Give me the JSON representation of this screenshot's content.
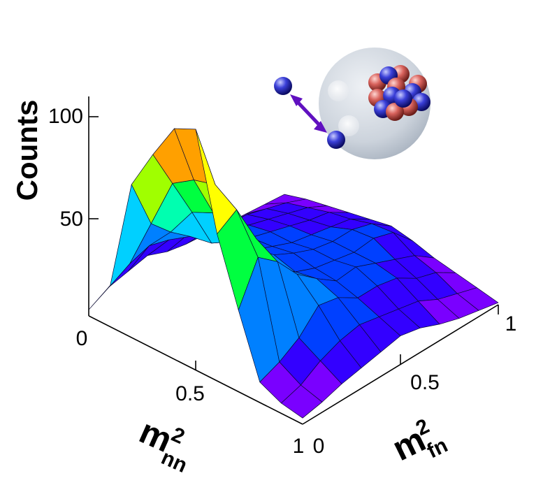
{
  "chart_data": {
    "type": "surface3d",
    "title": "",
    "zlabel": "Counts",
    "xlabel": {
      "base": "m",
      "sup": "2",
      "sub": "nn"
    },
    "ylabel": {
      "base": "m",
      "sup": "2",
      "sub": "fn"
    },
    "x_ticks": [
      "0",
      "0.5",
      "1"
    ],
    "y_ticks": [
      "0",
      "0.5",
      "1"
    ],
    "z_ticks": [
      "50",
      "100"
    ],
    "xlim": [
      0,
      1
    ],
    "ylim": [
      0,
      1
    ],
    "zlim": [
      0,
      110
    ],
    "grid": [
      0,
      0.1,
      0.2,
      0.3,
      0.4,
      0.5,
      0.6,
      0.7,
      0.8,
      0.9,
      1.0
    ],
    "z": [
      [
        3,
        20,
        75,
        95,
        113,
        118,
        72,
        40,
        10,
        5,
        3
      ],
      [
        8,
        25,
        50,
        75,
        82,
        85,
        78,
        60,
        14,
        8,
        5
      ],
      [
        10,
        28,
        40,
        55,
        60,
        62,
        58,
        52,
        20,
        14,
        8
      ],
      [
        12,
        25,
        32,
        34,
        40,
        42,
        38,
        40,
        30,
        18,
        10
      ],
      [
        8,
        22,
        28,
        30,
        30,
        33,
        30,
        32,
        28,
        20,
        12
      ],
      [
        6,
        18,
        24,
        25,
        26,
        28,
        26,
        25,
        22,
        18,
        14
      ],
      [
        5,
        15,
        20,
        22,
        22,
        24,
        24,
        26,
        22,
        16,
        12
      ],
      [
        4,
        14,
        17,
        19,
        20,
        22,
        22,
        22,
        20,
        14,
        8
      ],
      [
        3,
        11,
        14,
        16,
        18,
        22,
        23,
        18,
        14,
        9,
        5
      ],
      [
        2,
        8,
        11,
        14,
        16,
        19,
        20,
        14,
        11,
        6,
        3
      ],
      [
        1,
        4,
        6,
        8,
        10,
        12,
        10,
        7,
        5,
        3,
        1
      ]
    ],
    "colormap": [
      "#7a00ff",
      "#3300ff",
      "#0040ff",
      "#0080ff",
      "#00d0ff",
      "#00ffb0",
      "#00ff40",
      "#a0ff00",
      "#ffff00",
      "#ffa000",
      "#ff2000"
    ]
  }
}
